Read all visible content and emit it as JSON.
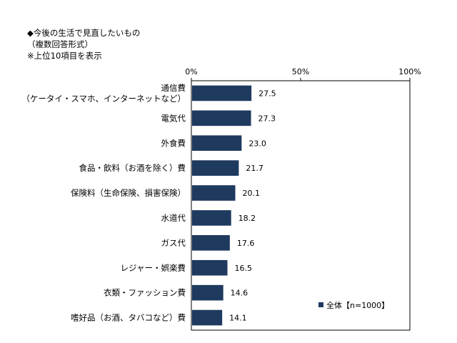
{
  "header": {
    "line1": "◆今後の生活で見直したいもの",
    "line2": "（複数回答形式）",
    "line3": "※上位10項目を表示"
  },
  "chart_data": {
    "type": "bar",
    "orientation": "horizontal",
    "categories": [
      [
        "通信費",
        "（ケータイ・スマホ、インターネットなど）"
      ],
      [
        "電気代"
      ],
      [
        "外食費"
      ],
      [
        "食品・飲料（お酒を除く）費"
      ],
      [
        "保険料（生命保険、損害保険）"
      ],
      [
        "水道代"
      ],
      [
        "ガス代"
      ],
      [
        "レジャー・娯楽費"
      ],
      [
        "衣類・ファッション費"
      ],
      [
        "嗜好品（お酒、タバコなど）費"
      ]
    ],
    "values": [
      27.5,
      27.3,
      23.0,
      21.7,
      20.1,
      18.2,
      17.6,
      16.5,
      14.6,
      14.1
    ],
    "value_labels": [
      "27.5",
      "27.3",
      "23.0",
      "21.7",
      "20.1",
      "18.2",
      "17.6",
      "16.5",
      "14.6",
      "14.1"
    ],
    "xlim": [
      0,
      100
    ],
    "tick_labels": [
      "0%",
      "50%",
      "100%"
    ],
    "tick_values": [
      0,
      50,
      100
    ],
    "series": [
      {
        "name": "全体【n=1000】"
      }
    ],
    "bar_color": "#1f3a5f",
    "legend_position": "bottom-right",
    "grid": false
  }
}
